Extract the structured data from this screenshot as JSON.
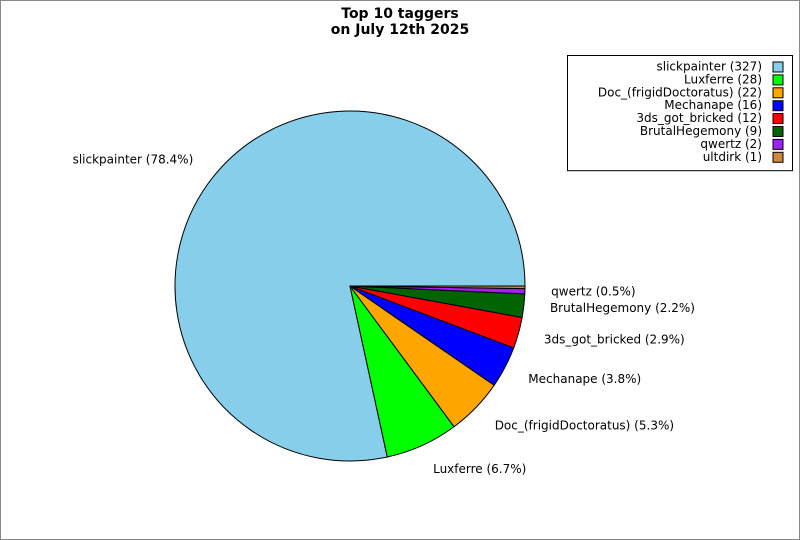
{
  "chart_data": {
    "type": "pie",
    "title": [
      "Top 10 taggers",
      "on July 12th 2025"
    ],
    "categories": [
      "slickpainter (327)",
      "Luxferre (28)",
      "Doc_(frigidDoctoratus) (22)",
      "Mechanape (16)",
      "3ds_got_bricked (12)",
      "BrutalHegemony (9)",
      "qwertz (2)",
      "ultdirk (1)"
    ],
    "values": [
      327,
      28,
      22,
      16,
      12,
      9,
      2,
      1
    ],
    "value_labels": [
      "slickpainter (78.4%)",
      "Luxferre (6.7%)",
      "Doc_(frigidDoctoratus) (5.3%)",
      "Mechanape (3.8%)",
      "3ds_got_bricked (2.9%)",
      "BrutalHegemony (2.2%)",
      "qwertz (0.5%)",
      null
    ],
    "colors": [
      "#87ceeb",
      "#00ff00",
      "#ffa500",
      "#0000ff",
      "#ff0000",
      "#006400",
      "#a020f0",
      "#cd853f"
    ],
    "legend": "upper right"
  }
}
